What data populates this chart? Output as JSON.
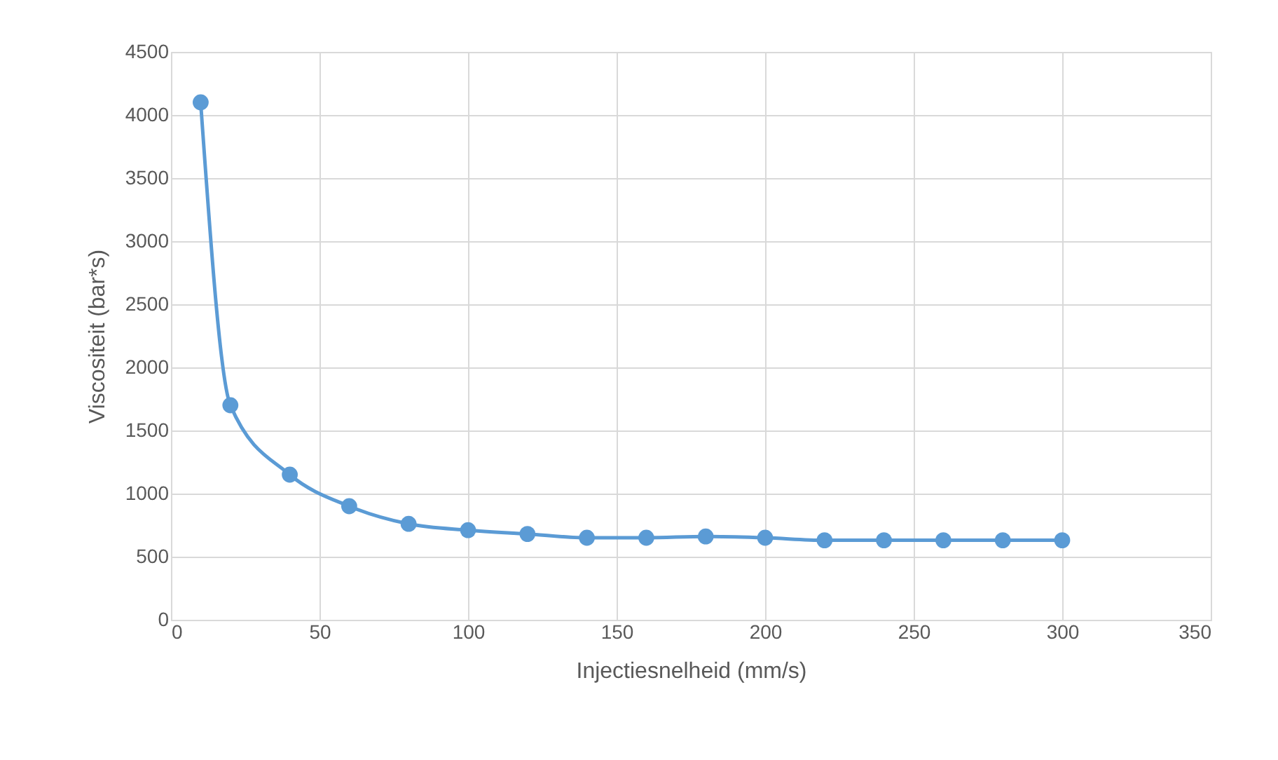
{
  "chart_data": {
    "type": "line",
    "xlabel": "Injectiesnelheid (mm/s)",
    "ylabel": "Viscositeit (bar*s)",
    "x": [
      10,
      20,
      40,
      60,
      80,
      100,
      120,
      140,
      160,
      180,
      200,
      220,
      240,
      260,
      280,
      300
    ],
    "series": [
      {
        "color": "#5b9bd5",
        "values": [
          4100,
          1700,
          1150,
          900,
          760,
          710,
          680,
          650,
          650,
          660,
          650,
          630,
          630,
          630,
          630,
          630
        ]
      }
    ],
    "xlim": [
      0,
      350
    ],
    "xticks": [
      0,
      50,
      100,
      150,
      200,
      250,
      300,
      350
    ],
    "ylim": [
      0,
      4500
    ],
    "yticks": [
      0,
      500,
      1000,
      1500,
      2000,
      2500,
      3000,
      3500,
      4000,
      4500
    ],
    "grid": true,
    "marker": "circle",
    "line_style": "solid"
  }
}
